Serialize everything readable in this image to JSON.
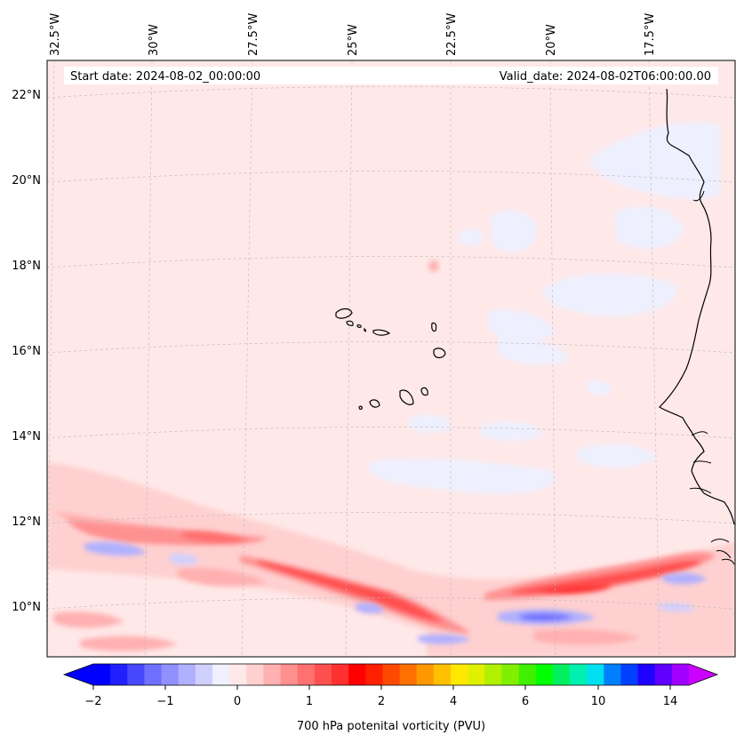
{
  "map": {
    "lon_labels": [
      "32.5°W",
      "30°W",
      "27.5°W",
      "25°W",
      "22.5°W",
      "20°W",
      "17.5°W"
    ],
    "lat_labels": [
      "22°N",
      "20°N",
      "18°N",
      "16°N",
      "14°N",
      "12°N",
      "10°N"
    ],
    "start_date": "Start date: 2024-08-02_00:00:00",
    "valid_date": "Valid_date: 2024-08-02T06:00:00.00",
    "field": "700 hPa potential vorticity",
    "units": "PVU"
  },
  "colorbar": {
    "tick_labels": [
      "−2",
      "−1",
      "0",
      "1",
      "2",
      "4",
      "6",
      "10",
      "14"
    ],
    "label": "700 hPa potenital vorticity (PVU)",
    "colors": [
      "#0000ff",
      "#2020ff",
      "#4848ff",
      "#7070ff",
      "#9090ff",
      "#b0b0ff",
      "#d0d0ff",
      "#f0f0ff",
      "#ffe8e8",
      "#ffd0d0",
      "#ffb0b0",
      "#ff9090",
      "#ff7070",
      "#ff5050",
      "#ff3030",
      "#ff0000",
      "#ff2000",
      "#ff4800",
      "#ff7000",
      "#ff9800",
      "#ffc000",
      "#ffe800",
      "#e0f000",
      "#b0f000",
      "#80f000",
      "#40f000",
      "#00ff00",
      "#00f060",
      "#00f0b0",
      "#00e0f0",
      "#0080ff",
      "#0040ff",
      "#2000ff",
      "#6000ff",
      "#a000ff"
    ],
    "under_color": "#0000ff",
    "over_color": "#cc00ff"
  }
}
